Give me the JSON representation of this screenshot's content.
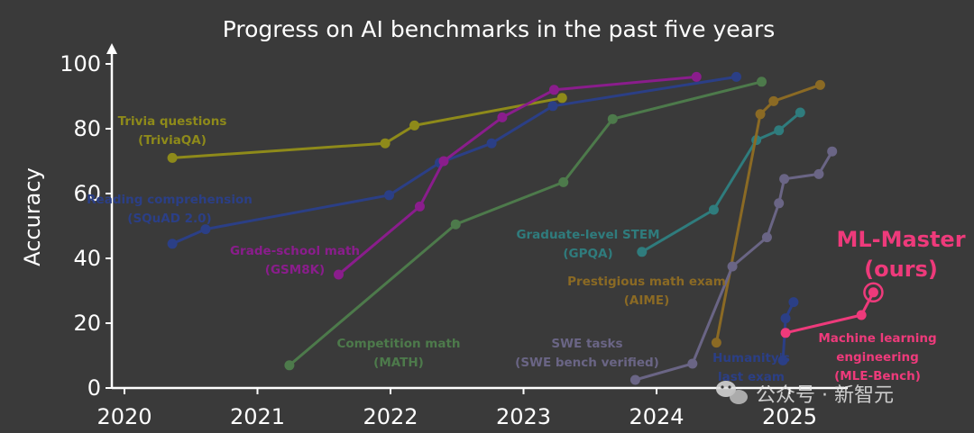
{
  "chart_data": {
    "type": "line",
    "title": "Progress on AI benchmarks in the past five years",
    "xlabel": "",
    "ylabel": "Accuracy",
    "xlim": [
      2019.9,
      2025.6
    ],
    "ylim": [
      0,
      100
    ],
    "xticks": [
      2020,
      2021,
      2022,
      2023,
      2024,
      2025
    ],
    "yticks": [
      0,
      20,
      40,
      60,
      80,
      100
    ],
    "series": [
      {
        "name": "Trivia questions",
        "sublabel": "(TriviaQA)",
        "color": "#8e8a1a",
        "x": [
          2020.36,
          2021.96,
          2022.18,
          2023.29
        ],
        "y": [
          71,
          75.5,
          81,
          89.5
        ]
      },
      {
        "name": "Reading comprehension",
        "sublabel": "(SQuAD 2.0)",
        "color": "#2b3f86",
        "x": [
          2020.36,
          2020.61,
          2021.99,
          2022.37,
          2022.76,
          2023.22,
          2024.6
        ],
        "y": [
          44.5,
          49,
          59.5,
          69.5,
          75.5,
          87,
          96
        ]
      },
      {
        "name": "Grade-school math",
        "sublabel": "(GSM8K)",
        "color": "#8a1d8c",
        "x": [
          2021.61,
          2022.22,
          2022.4,
          2022.84,
          2023.23,
          2024.3
        ],
        "y": [
          35,
          56,
          70,
          83.5,
          92,
          96
        ]
      },
      {
        "name": "Competition math",
        "sublabel": "(MATH)",
        "color": "#4d7a4b",
        "x": [
          2021.24,
          2022.49,
          2023.3,
          2023.67,
          2024.79
        ],
        "y": [
          7,
          50.5,
          63.5,
          83,
          94.5
        ]
      },
      {
        "name": "Graduate-level STEM",
        "sublabel": "(GPQA)",
        "color": "#2f7c7d",
        "x": [
          2023.89,
          2024.43,
          2024.75,
          2024.92,
          2025.08
        ],
        "y": [
          42,
          55,
          76.5,
          79.5,
          85
        ]
      },
      {
        "name": "Prestigious math exam",
        "sublabel": "(AIME)",
        "color": "#8b6a24",
        "x": [
          2024.45,
          2024.78,
          2024.88,
          2025.23
        ],
        "y": [
          14,
          84.5,
          88.5,
          93.5
        ]
      },
      {
        "name": "SWE tasks",
        "sublabel": "(SWE bench verified)",
        "color": "#6a6585",
        "x": [
          2023.84,
          2024.27,
          2024.57,
          2024.83,
          2024.92,
          2024.96,
          2025.22,
          2025.32
        ],
        "y": [
          2.5,
          7.5,
          37.5,
          46.5,
          57,
          64.5,
          66,
          73
        ]
      },
      {
        "name": "Humanity's",
        "sublabel": "last exam",
        "color": "#2b3f86",
        "x": [
          2024.95,
          2024.97,
          2025.03
        ],
        "y": [
          8.5,
          21.5,
          26.5
        ]
      },
      {
        "name": "Machine learning engineering",
        "sublabel": "(MLE-Bench)",
        "highlight": "ML-Master (ours)",
        "color": "#ee3a7b",
        "x": [
          2024.97,
          2025.54,
          2025.63
        ],
        "y": [
          17,
          22.5,
          29.5
        ]
      }
    ],
    "annotations": {
      "trivia": [
        "Trivia questions",
        "(TriviaQA)"
      ],
      "reading": [
        "Reading comprehension",
        "(SQuAD 2.0)"
      ],
      "gsm8k": [
        "Grade-school math",
        "(GSM8K)"
      ],
      "math": [
        "Competition math",
        "(MATH)"
      ],
      "gpqa": [
        "Graduate-level STEM",
        "(GPQA)"
      ],
      "aime": [
        "Prestigious math exam",
        "(AIME)"
      ],
      "swe": [
        "SWE tasks",
        "(SWE bench verified)"
      ],
      "hle": [
        "Humanity's",
        "last exam"
      ],
      "mle": [
        "Machine learning",
        "engineering",
        "(MLE-Bench)"
      ],
      "mlmaster": [
        "ML-Master",
        "(ours)"
      ]
    }
  },
  "watermark": "公众号 · 新智元"
}
